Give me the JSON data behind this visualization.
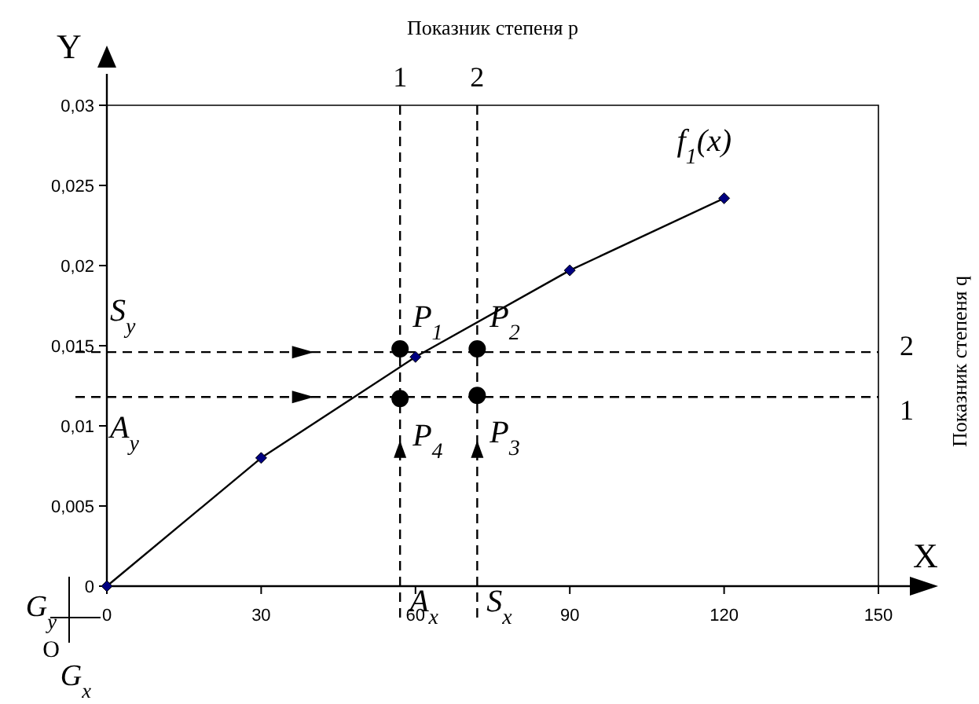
{
  "chart_data": {
    "type": "line",
    "xlabel": "X",
    "ylabel": "Y",
    "xlim": [
      0,
      150
    ],
    "xticks": [
      0,
      30,
      60,
      90,
      120,
      150
    ],
    "ylim": [
      0,
      0.03
    ],
    "yticks": [
      {
        "value": 0,
        "label": "0"
      },
      {
        "value": 0.005,
        "label": "0,005"
      },
      {
        "value": 0.01,
        "label": "0,01"
      },
      {
        "value": 0.015,
        "label": "0,015"
      },
      {
        "value": 0.02,
        "label": "0,02"
      },
      {
        "value": 0.025,
        "label": "0,025"
      },
      {
        "value": 0.03,
        "label": "0,03"
      }
    ],
    "grid": false,
    "series": [
      {
        "color": "#000000",
        "marker": "diamond",
        "line_style": "solid",
        "x": [
          0,
          30,
          60,
          90,
          120
        ],
        "values": [
          0,
          0.008,
          0.0143,
          0.0197,
          0.0242
        ]
      },
      {
        "type": "scatter",
        "color": "#000000",
        "marker": "circle",
        "x": [
          57,
          72,
          72,
          57
        ],
        "values": [
          0.0148,
          0.0148,
          0.0119,
          0.0117
        ]
      }
    ],
    "ref_lines": [
      {
        "axis": "x",
        "value": 57,
        "line_style": "dashed",
        "color": "#000000"
      },
      {
        "axis": "x",
        "value": 72,
        "line_style": "dashed",
        "color": "#000000"
      },
      {
        "axis": "y",
        "value": 0.0146,
        "line_style": "dashed",
        "color": "#000000"
      },
      {
        "axis": "y",
        "value": 0.0118,
        "line_style": "dashed",
        "color": "#000000"
      }
    ],
    "annotations": [
      {
        "text": "f$_{1}$(x)",
        "x": 120,
        "y": 0.0242
      },
      {
        "text": "P$_{1}$",
        "x": 57,
        "y": 0.0148
      },
      {
        "text": "P$_{2}$",
        "x": 72,
        "y": 0.0148
      },
      {
        "text": "P$_{3}$",
        "x": 72,
        "y": 0.0119
      },
      {
        "text": "P$_{4}$",
        "x": 57,
        "y": 0.0117
      },
      {
        "text": "S$_{y}$",
        "y": 0.0146
      },
      {
        "text": "A$_{y}$",
        "y": 0.0118
      },
      {
        "text": "A$_{x}$",
        "x": 57
      },
      {
        "text": "S$_{x}$",
        "x": 72
      },
      {
        "text": "1",
        "x": 57,
        "y": 0.03
      },
      {
        "text": "2",
        "x": 72,
        "y": 0.03
      },
      {
        "text": "2",
        "x": 150,
        "y": 0.0146
      },
      {
        "text": "1",
        "x": 150,
        "y": 0.0118
      },
      "Показник степеня p",
      "Показник степеня q",
      "G$_{y}$",
      "O",
      "G$_{x}$"
    ]
  }
}
